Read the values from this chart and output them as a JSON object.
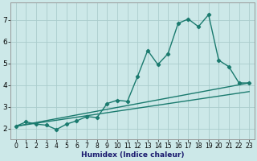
{
  "xlabel": "Humidex (Indice chaleur)",
  "bg_color": "#cce8e8",
  "grid_color": "#aacccc",
  "line_color": "#1a7a6e",
  "xlim": [
    -0.5,
    23.5
  ],
  "ylim": [
    1.5,
    7.8
  ],
  "xticks": [
    0,
    1,
    2,
    3,
    4,
    5,
    6,
    7,
    8,
    9,
    10,
    11,
    12,
    13,
    14,
    15,
    16,
    17,
    18,
    19,
    20,
    21,
    22,
    23
  ],
  "yticks": [
    2,
    3,
    4,
    5,
    6,
    7
  ],
  "series1_x": [
    0,
    1,
    2,
    3,
    4,
    5,
    6,
    7,
    8,
    9,
    10,
    11,
    12,
    13,
    14,
    15,
    16,
    17,
    18,
    19,
    20,
    21,
    22,
    23
  ],
  "series1_y": [
    2.1,
    2.3,
    2.2,
    2.15,
    1.95,
    2.2,
    2.35,
    2.55,
    2.5,
    3.15,
    3.3,
    3.25,
    4.4,
    5.6,
    4.95,
    5.45,
    6.85,
    7.05,
    6.7,
    7.25,
    5.15,
    4.85,
    4.1,
    4.1
  ],
  "series2_x": [
    0,
    23
  ],
  "series2_y": [
    2.1,
    4.1
  ],
  "series3_x": [
    0,
    23
  ],
  "series3_y": [
    2.1,
    3.7
  ],
  "marker": "D",
  "markersize": 2.2,
  "linewidth": 1.0,
  "xlabel_fontsize": 6.5,
  "tick_fontsize_x": 5.5,
  "tick_fontsize_y": 6.5
}
